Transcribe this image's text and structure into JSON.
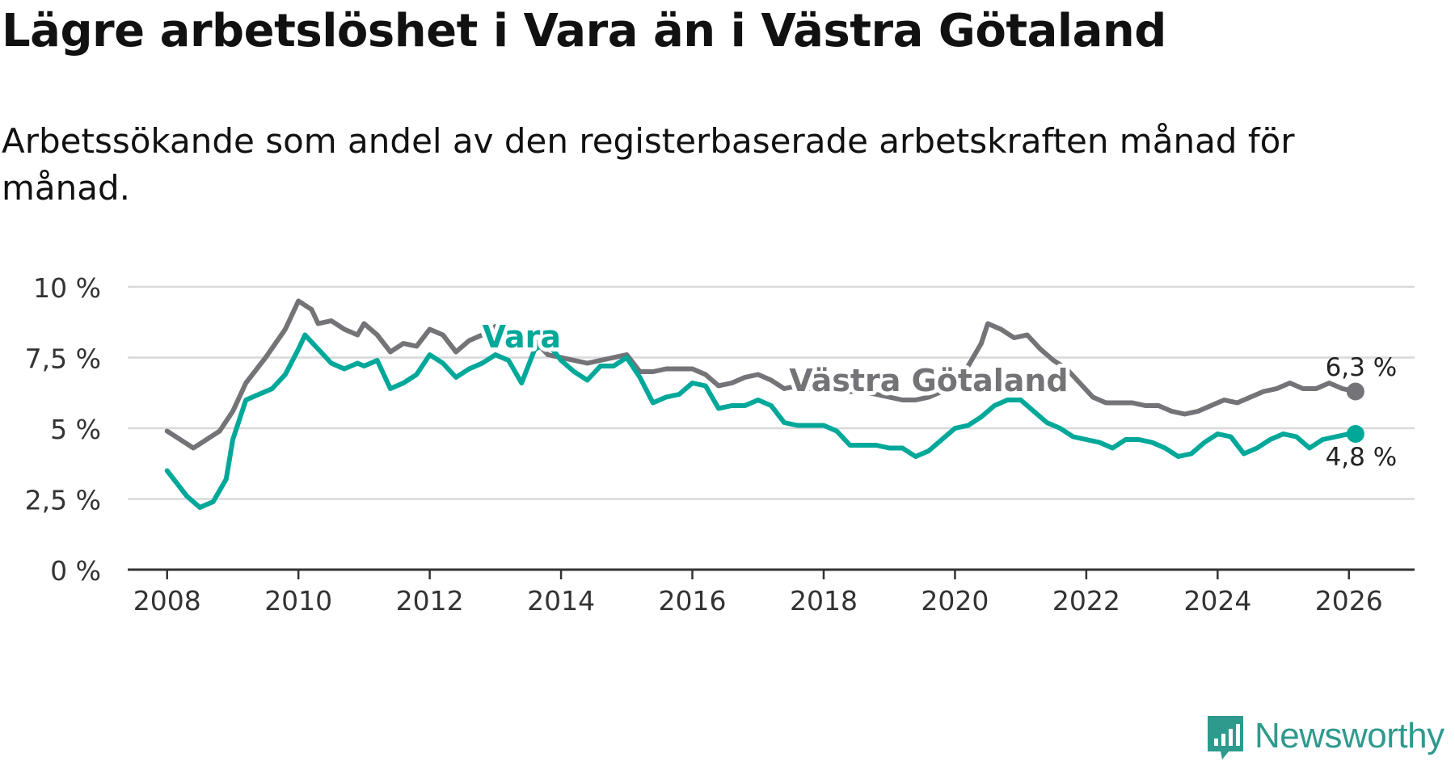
{
  "title": "Lägre arbetslöshet i Vara än i Västra Götaland",
  "subtitle": "Arbetssökande som andel av den registerbaserade arbetskraften månad för månad.",
  "logo_text": "Newsworthy",
  "colors": {
    "vara": "#00a89a",
    "vastra_gotaland": "#737378",
    "grid": "#d9d9d9",
    "axis": "#333333",
    "logo": "#2e9a8e"
  },
  "chart_data": {
    "type": "line",
    "title": "Lägre arbetslöshet i Vara än i Västra Götaland",
    "xlabel": "",
    "ylabel": "",
    "xlim": [
      2007.4,
      2027.0
    ],
    "ylim": [
      0,
      10
    ],
    "x_ticks": [
      2008,
      2010,
      2012,
      2014,
      2016,
      2018,
      2020,
      2022,
      2024,
      2026
    ],
    "x_tick_labels": [
      "2008",
      "2010",
      "2012",
      "2014",
      "2016",
      "2018",
      "2020",
      "2022",
      "2024",
      "2026"
    ],
    "y_ticks": [
      0,
      2.5,
      5,
      7.5,
      10
    ],
    "y_tick_labels": [
      "0 %",
      "2,5 %",
      "5 %",
      "7,5 %",
      "10 %"
    ],
    "grid": "horizontal",
    "series": [
      {
        "name": "Västra Götaland",
        "color": "#737378",
        "label_at": 2019.6,
        "end_label": "6,3 %",
        "end_value": 6.3,
        "points": [
          [
            2008.0,
            4.9
          ],
          [
            2008.2,
            4.6
          ],
          [
            2008.4,
            4.3
          ],
          [
            2008.6,
            4.6
          ],
          [
            2008.8,
            4.9
          ],
          [
            2009.0,
            5.6
          ],
          [
            2009.2,
            6.6
          ],
          [
            2009.5,
            7.5
          ],
          [
            2009.8,
            8.5
          ],
          [
            2010.0,
            9.5
          ],
          [
            2010.2,
            9.2
          ],
          [
            2010.3,
            8.7
          ],
          [
            2010.5,
            8.8
          ],
          [
            2010.7,
            8.5
          ],
          [
            2010.9,
            8.3
          ],
          [
            2011.0,
            8.7
          ],
          [
            2011.2,
            8.3
          ],
          [
            2011.4,
            7.7
          ],
          [
            2011.6,
            8.0
          ],
          [
            2011.8,
            7.9
          ],
          [
            2012.0,
            8.5
          ],
          [
            2012.2,
            8.3
          ],
          [
            2012.4,
            7.7
          ],
          [
            2012.6,
            8.1
          ],
          [
            2012.8,
            8.3
          ],
          [
            2013.0,
            8.6
          ],
          [
            2013.2,
            8.3
          ],
          [
            2013.4,
            7.8
          ],
          [
            2013.6,
            8.1
          ],
          [
            2013.8,
            7.6
          ],
          [
            2014.0,
            7.5
          ],
          [
            2014.2,
            7.4
          ],
          [
            2014.4,
            7.3
          ],
          [
            2014.6,
            7.4
          ],
          [
            2014.8,
            7.5
          ],
          [
            2015.0,
            7.6
          ],
          [
            2015.2,
            7.0
          ],
          [
            2015.4,
            7.0
          ],
          [
            2015.6,
            7.1
          ],
          [
            2015.8,
            7.1
          ],
          [
            2016.0,
            7.1
          ],
          [
            2016.2,
            6.9
          ],
          [
            2016.4,
            6.5
          ],
          [
            2016.6,
            6.6
          ],
          [
            2016.8,
            6.8
          ],
          [
            2017.0,
            6.9
          ],
          [
            2017.2,
            6.7
          ],
          [
            2017.4,
            6.4
          ],
          [
            2017.6,
            6.5
          ],
          [
            2017.8,
            6.4
          ],
          [
            2018.0,
            6.5
          ],
          [
            2018.2,
            6.4
          ],
          [
            2018.4,
            6.3
          ],
          [
            2018.6,
            6.3
          ],
          [
            2018.8,
            6.2
          ],
          [
            2019.0,
            6.1
          ],
          [
            2019.2,
            6.0
          ],
          [
            2019.4,
            6.0
          ],
          [
            2019.6,
            6.1
          ],
          [
            2019.8,
            6.3
          ],
          [
            2020.0,
            6.5
          ],
          [
            2020.2,
            7.2
          ],
          [
            2020.4,
            8.0
          ],
          [
            2020.5,
            8.7
          ],
          [
            2020.7,
            8.5
          ],
          [
            2020.9,
            8.2
          ],
          [
            2021.1,
            8.3
          ],
          [
            2021.3,
            7.8
          ],
          [
            2021.5,
            7.4
          ],
          [
            2021.7,
            7.1
          ],
          [
            2021.9,
            6.6
          ],
          [
            2022.1,
            6.1
          ],
          [
            2022.3,
            5.9
          ],
          [
            2022.5,
            5.9
          ],
          [
            2022.7,
            5.9
          ],
          [
            2022.9,
            5.8
          ],
          [
            2023.1,
            5.8
          ],
          [
            2023.3,
            5.6
          ],
          [
            2023.5,
            5.5
          ],
          [
            2023.7,
            5.6
          ],
          [
            2023.9,
            5.8
          ],
          [
            2024.1,
            6.0
          ],
          [
            2024.3,
            5.9
          ],
          [
            2024.5,
            6.1
          ],
          [
            2024.7,
            6.3
          ],
          [
            2024.9,
            6.4
          ],
          [
            2025.1,
            6.6
          ],
          [
            2025.3,
            6.4
          ],
          [
            2025.5,
            6.4
          ],
          [
            2025.7,
            6.6
          ],
          [
            2025.9,
            6.4
          ],
          [
            2026.1,
            6.3
          ]
        ]
      },
      {
        "name": "Vara",
        "color": "#00a89a",
        "label_at": 2013.5,
        "end_label": "4,8 %",
        "end_value": 4.8,
        "points": [
          [
            2008.0,
            3.5
          ],
          [
            2008.1,
            3.2
          ],
          [
            2008.3,
            2.6
          ],
          [
            2008.5,
            2.2
          ],
          [
            2008.7,
            2.4
          ],
          [
            2008.9,
            3.2
          ],
          [
            2009.0,
            4.6
          ],
          [
            2009.2,
            6.0
          ],
          [
            2009.4,
            6.2
          ],
          [
            2009.6,
            6.4
          ],
          [
            2009.8,
            6.9
          ],
          [
            2010.0,
            7.8
          ],
          [
            2010.1,
            8.3
          ],
          [
            2010.3,
            7.8
          ],
          [
            2010.5,
            7.3
          ],
          [
            2010.7,
            7.1
          ],
          [
            2010.9,
            7.3
          ],
          [
            2011.0,
            7.2
          ],
          [
            2011.2,
            7.4
          ],
          [
            2011.4,
            6.4
          ],
          [
            2011.6,
            6.6
          ],
          [
            2011.8,
            6.9
          ],
          [
            2012.0,
            7.6
          ],
          [
            2012.2,
            7.3
          ],
          [
            2012.4,
            6.8
          ],
          [
            2012.6,
            7.1
          ],
          [
            2012.8,
            7.3
          ],
          [
            2013.0,
            7.6
          ],
          [
            2013.2,
            7.4
          ],
          [
            2013.4,
            6.6
          ],
          [
            2013.6,
            7.8
          ],
          [
            2013.8,
            8.0
          ],
          [
            2014.0,
            7.4
          ],
          [
            2014.2,
            7.0
          ],
          [
            2014.4,
            6.7
          ],
          [
            2014.6,
            7.2
          ],
          [
            2014.8,
            7.2
          ],
          [
            2015.0,
            7.5
          ],
          [
            2015.2,
            6.8
          ],
          [
            2015.4,
            5.9
          ],
          [
            2015.6,
            6.1
          ],
          [
            2015.8,
            6.2
          ],
          [
            2016.0,
            6.6
          ],
          [
            2016.2,
            6.5
          ],
          [
            2016.4,
            5.7
          ],
          [
            2016.6,
            5.8
          ],
          [
            2016.8,
            5.8
          ],
          [
            2017.0,
            6.0
          ],
          [
            2017.2,
            5.8
          ],
          [
            2017.4,
            5.2
          ],
          [
            2017.6,
            5.1
          ],
          [
            2017.8,
            5.1
          ],
          [
            2018.0,
            5.1
          ],
          [
            2018.2,
            4.9
          ],
          [
            2018.4,
            4.4
          ],
          [
            2018.6,
            4.4
          ],
          [
            2018.8,
            4.4
          ],
          [
            2019.0,
            4.3
          ],
          [
            2019.2,
            4.3
          ],
          [
            2019.4,
            4.0
          ],
          [
            2019.6,
            4.2
          ],
          [
            2019.8,
            4.6
          ],
          [
            2020.0,
            5.0
          ],
          [
            2020.2,
            5.1
          ],
          [
            2020.4,
            5.4
          ],
          [
            2020.6,
            5.8
          ],
          [
            2020.8,
            6.0
          ],
          [
            2021.0,
            6.0
          ],
          [
            2021.2,
            5.6
          ],
          [
            2021.4,
            5.2
          ],
          [
            2021.6,
            5.0
          ],
          [
            2021.8,
            4.7
          ],
          [
            2022.0,
            4.6
          ],
          [
            2022.2,
            4.5
          ],
          [
            2022.4,
            4.3
          ],
          [
            2022.6,
            4.6
          ],
          [
            2022.8,
            4.6
          ],
          [
            2023.0,
            4.5
          ],
          [
            2023.2,
            4.3
          ],
          [
            2023.4,
            4.0
          ],
          [
            2023.6,
            4.1
          ],
          [
            2023.8,
            4.5
          ],
          [
            2024.0,
            4.8
          ],
          [
            2024.2,
            4.7
          ],
          [
            2024.4,
            4.1
          ],
          [
            2024.6,
            4.3
          ],
          [
            2024.8,
            4.6
          ],
          [
            2025.0,
            4.8
          ],
          [
            2025.2,
            4.7
          ],
          [
            2025.4,
            4.3
          ],
          [
            2025.6,
            4.6
          ],
          [
            2025.8,
            4.7
          ],
          [
            2026.0,
            4.8
          ],
          [
            2026.1,
            4.8
          ]
        ]
      }
    ]
  }
}
